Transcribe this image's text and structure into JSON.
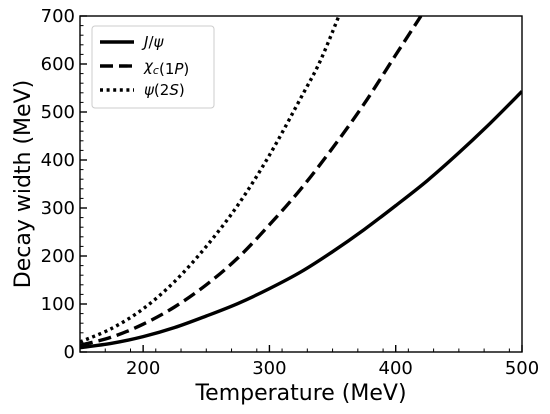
{
  "chart_data": {
    "type": "line",
    "title": "",
    "xlabel": "Temperature (MeV)",
    "ylabel": "Decay width (MeV)",
    "xlim": [
      150,
      500
    ],
    "ylim": [
      0,
      700
    ],
    "x_ticks": [
      200,
      300,
      400,
      500
    ],
    "y_ticks": [
      0,
      100,
      200,
      300,
      400,
      500,
      600,
      700
    ],
    "grid": false,
    "legend_position": "top-left",
    "series": [
      {
        "name": "J/ψ",
        "linestyle": "solid",
        "color": "#000000",
        "x": [
          150,
          175,
          200,
          225,
          250,
          275,
          300,
          325,
          350,
          375,
          400,
          425,
          450,
          475,
          500
        ],
        "y": [
          9,
          18,
          32,
          51,
          75,
          101,
          132,
          167,
          209,
          255,
          305,
          357,
          415,
          477,
          543
        ]
      },
      {
        "name": "χc(1P)",
        "linestyle": "dashed",
        "color": "#000000",
        "x": [
          150,
          175,
          200,
          225,
          250,
          275,
          300,
          325,
          350,
          375,
          400,
          420
        ],
        "y": [
          14,
          31,
          58,
          94,
          140,
          196,
          265,
          340,
          425,
          517,
          619,
          700
        ]
      },
      {
        "name": "ψ(2S)",
        "linestyle": "dotted",
        "color": "#000000",
        "x": [
          150,
          175,
          200,
          225,
          250,
          275,
          300,
          325,
          340,
          355
        ],
        "y": [
          21,
          49,
          90,
          147,
          220,
          306,
          410,
          530,
          605,
          700
        ]
      }
    ]
  }
}
